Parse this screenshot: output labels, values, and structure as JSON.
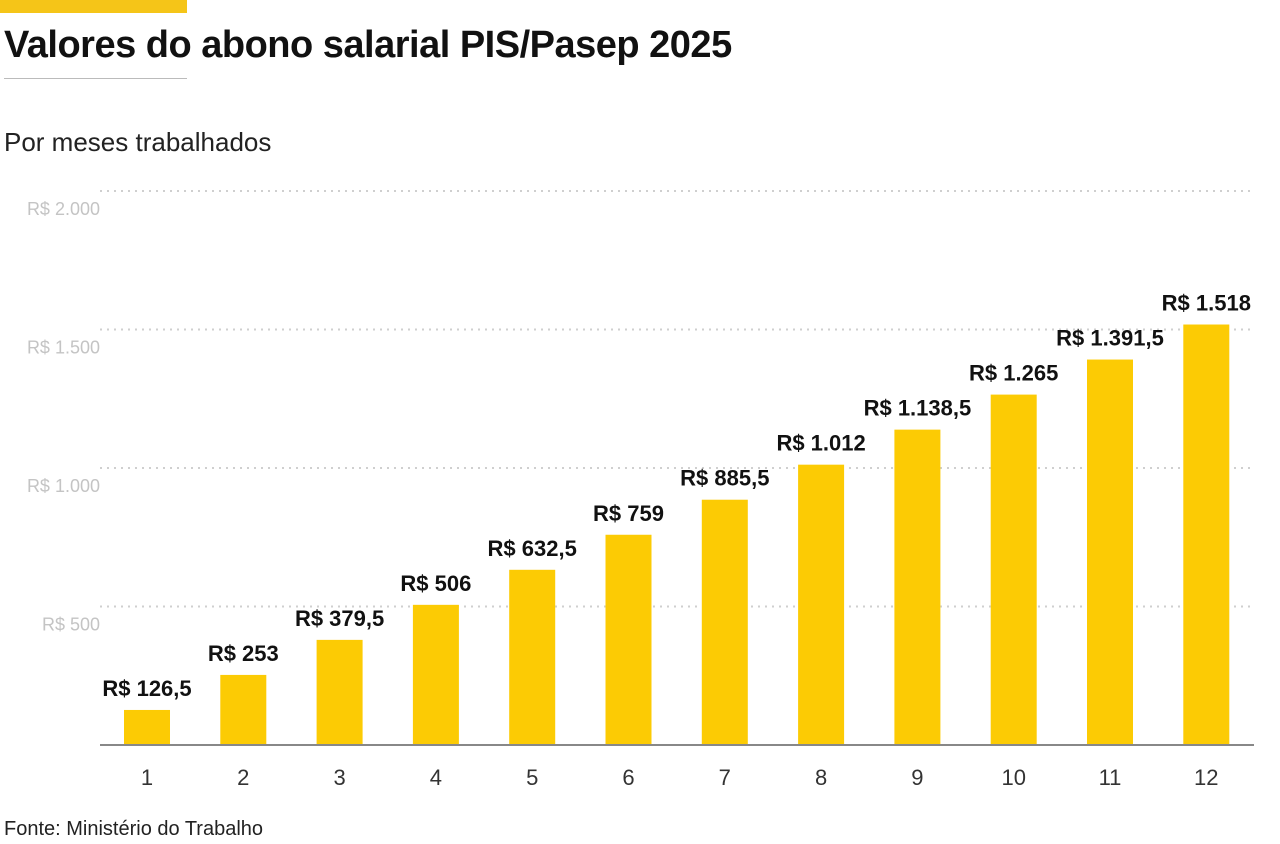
{
  "title": "Valores do abono salarial PIS/Pasep 2025",
  "subtitle": "Por meses trabalhados",
  "source": "Fonte: Ministério do Trabalho",
  "colors": {
    "accent": "#f5c518",
    "bar": "#fccb04"
  },
  "chart_data": {
    "type": "bar",
    "categories": [
      "1",
      "2",
      "3",
      "4",
      "5",
      "6",
      "7",
      "8",
      "9",
      "10",
      "11",
      "12"
    ],
    "values": [
      126.5,
      253,
      379.5,
      506,
      632.5,
      759,
      885.5,
      1012,
      1138.5,
      1265,
      1391.5,
      1518
    ],
    "data_labels": [
      "R$ 126,5",
      "R$ 253",
      "R$ 379,5",
      "R$ 506",
      "R$ 632,5",
      "R$ 759",
      "R$ 885,5",
      "R$ 1.012",
      "R$ 1.138,5",
      "R$ 1.265",
      "R$ 1.391,5",
      "R$ 1.518"
    ],
    "yticks": [
      500,
      1000,
      1500,
      2000
    ],
    "ytick_labels": [
      "R$ 500",
      "R$ 1.000",
      "R$ 1.500",
      "R$ 2.000"
    ],
    "ylim": [
      0,
      2000
    ],
    "grid": true,
    "legend": "none"
  }
}
